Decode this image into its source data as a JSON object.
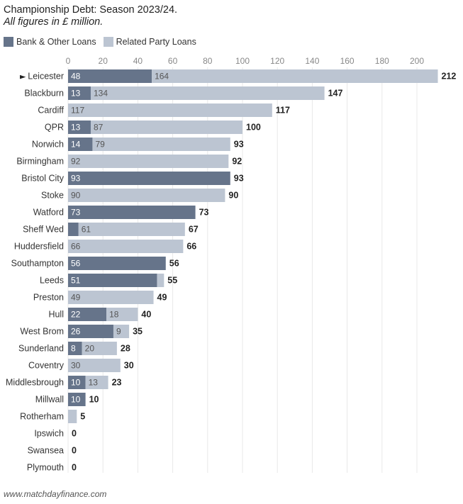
{
  "header": {
    "title": "Championship Debt: Season 2023/24.",
    "subtitle": "All figures in £ million."
  },
  "legend": [
    {
      "label": "Bank & Other Loans",
      "color": "#66748a"
    },
    {
      "label": "Related Party Loans",
      "color": "#bcc5d2"
    }
  ],
  "footer": {
    "source": "www.matchdayfinance.com"
  },
  "colors": {
    "bank": "#66748a",
    "related": "#bcc5d2",
    "gridline": "#e8e8e8"
  },
  "highlight_marker": "►",
  "chart_data": {
    "type": "bar",
    "orientation": "horizontal",
    "stacked": true,
    "title": "Championship Debt: Season 2023/24.",
    "subtitle": "All figures in £ million.",
    "xlim": [
      0,
      220
    ],
    "xticks": [
      0,
      20,
      40,
      60,
      80,
      100,
      120,
      140,
      160,
      180,
      200
    ],
    "categories": [
      "Leicester",
      "Blackburn",
      "Cardiff",
      "QPR",
      "Norwich",
      "Birmingham",
      "Bristol City",
      "Stoke",
      "Watford",
      "Sheff Wed",
      "Huddersfield",
      "Southampton",
      "Leeds",
      "Preston",
      "Hull",
      "West Brom",
      "Sunderland",
      "Coventry",
      "Middlesbrough",
      "Millwall",
      "Rotherham",
      "Ipswich",
      "Swansea",
      "Plymouth"
    ],
    "highlighted_category": "Leicester",
    "series": [
      {
        "name": "Bank & Other Loans",
        "color": "#66748a",
        "values": [
          48,
          13,
          0,
          13,
          14,
          0,
          93,
          0,
          73,
          6,
          0,
          56,
          51,
          0,
          22,
          26,
          8,
          0,
          10,
          10,
          0,
          0,
          0,
          0
        ],
        "labels": [
          "48",
          "13",
          "",
          "13",
          "14",
          "",
          "93",
          "",
          "73",
          "",
          "",
          "56",
          "51",
          "",
          "22",
          "26",
          "8",
          "",
          "10",
          "10",
          "",
          "",
          "",
          ""
        ]
      },
      {
        "name": "Related Party Loans",
        "color": "#bcc5d2",
        "values": [
          164,
          134,
          117,
          87,
          79,
          92,
          0,
          90,
          0,
          61,
          66,
          0,
          4,
          49,
          18,
          9,
          20,
          30,
          13,
          0,
          5,
          0,
          0,
          0
        ],
        "labels": [
          "164",
          "134",
          "117",
          "87",
          "79",
          "92",
          "",
          "90",
          "",
          "61",
          "66",
          "",
          "",
          "49",
          "18",
          "9",
          "20",
          "30",
          "13",
          "",
          "",
          "",
          "",
          ""
        ]
      }
    ],
    "totals": [
      212,
      147,
      117,
      100,
      93,
      92,
      93,
      90,
      73,
      67,
      66,
      56,
      55,
      49,
      40,
      35,
      28,
      30,
      23,
      10,
      5,
      0,
      0,
      0
    ]
  }
}
